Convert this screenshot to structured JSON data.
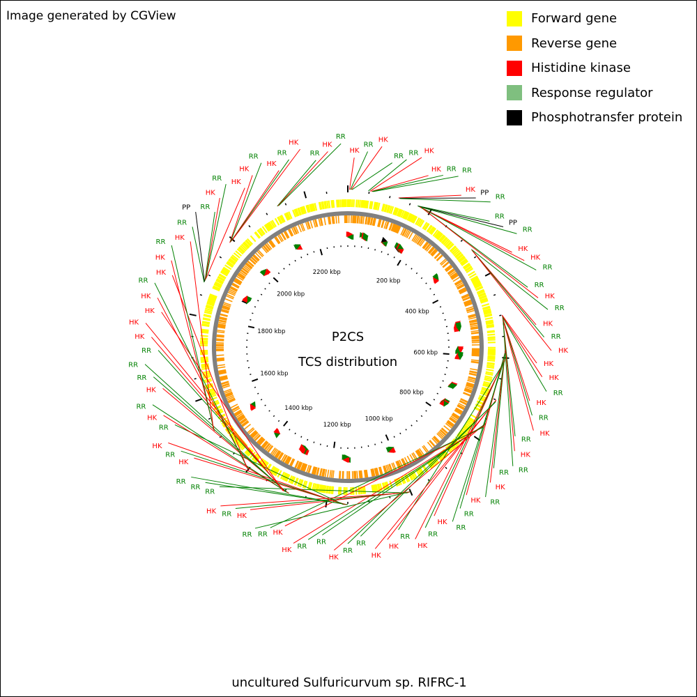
{
  "credit": "Image generated by CGView",
  "legend": [
    {
      "label": "Forward gene",
      "color": "#ffff00"
    },
    {
      "label": "Reverse gene",
      "color": "#ff9900"
    },
    {
      "label": "Histidine kinase",
      "color": "#ff0000"
    },
    {
      "label": "Response regulator",
      "color": "#7fbf7f"
    },
    {
      "label": "Phosphotransfer protein",
      "color": "#000000"
    }
  ],
  "center": {
    "line1": "P2CS",
    "line2": "TCS distribution"
  },
  "organism": "uncultured Sulfuricurvum sp. RIFRC-1",
  "genome": {
    "length_kbp": 2300,
    "tick_labels": [
      "200 kbp",
      "400 kbp",
      "600 kbp",
      "800 kbp",
      "1000 kbp",
      "1200 kbp",
      "1400 kbp",
      "1600 kbp",
      "1800 kbp",
      "2000 kbp",
      "2200 kbp"
    ]
  },
  "colors": {
    "forward": "#ffff00",
    "reverse": "#ff9900",
    "hk": "#ff0000",
    "rr": "#008000",
    "pp": "#000000",
    "backbone": "#808080"
  },
  "features": [
    {
      "label": "HK",
      "type": "hk",
      "pos_kbp": 4
    },
    {
      "label": "RR",
      "type": "rr",
      "pos_kbp": 6
    },
    {
      "label": "HK",
      "type": "hk",
      "pos_kbp": 8
    },
    {
      "label": "RR",
      "type": "rr",
      "pos_kbp": 10
    },
    {
      "label": "RR",
      "type": "rr",
      "pos_kbp": 48
    },
    {
      "label": "HK",
      "type": "hk",
      "pos_kbp": 52
    },
    {
      "label": "HK",
      "type": "hk",
      "pos_kbp": 55
    },
    {
      "label": "RR",
      "type": "rr",
      "pos_kbp": 57
    },
    {
      "label": "RR",
      "type": "rr",
      "pos_kbp": 59
    },
    {
      "label": "HK",
      "type": "hk",
      "pos_kbp": 120
    },
    {
      "label": "PP",
      "type": "pp",
      "pos_kbp": 122
    },
    {
      "label": "RR",
      "type": "rr",
      "pos_kbp": 124
    },
    {
      "label": "RR",
      "type": "rr",
      "pos_kbp": 168
    },
    {
      "label": "PP",
      "type": "pp",
      "pos_kbp": 170
    },
    {
      "label": "RR",
      "type": "rr",
      "pos_kbp": 172
    },
    {
      "label": "HK",
      "type": "hk",
      "pos_kbp": 174
    },
    {
      "label": "HK",
      "type": "hk",
      "pos_kbp": 176
    },
    {
      "label": "RR",
      "type": "rr",
      "pos_kbp": 178
    },
    {
      "label": "RR",
      "type": "rr",
      "pos_kbp": 180
    },
    {
      "label": "HK",
      "type": "hk",
      "pos_kbp": 182
    },
    {
      "label": "RR",
      "type": "rr",
      "pos_kbp": 330
    },
    {
      "label": "HK",
      "type": "hk",
      "pos_kbp": 332
    },
    {
      "label": "RR",
      "type": "rr",
      "pos_kbp": 334
    },
    {
      "label": "HK",
      "type": "hk",
      "pos_kbp": 336
    },
    {
      "label": "HK",
      "type": "hk",
      "pos_kbp": 500
    },
    {
      "label": "HK",
      "type": "hk",
      "pos_kbp": 502
    },
    {
      "label": "RR",
      "type": "rr",
      "pos_kbp": 504
    },
    {
      "label": "HK",
      "type": "hk",
      "pos_kbp": 506
    },
    {
      "label": "RR",
      "type": "rr",
      "pos_kbp": 508
    },
    {
      "label": "HK",
      "type": "hk",
      "pos_kbp": 510
    },
    {
      "label": "RR",
      "type": "rr",
      "pos_kbp": 512
    },
    {
      "label": "HK",
      "type": "hk",
      "pos_kbp": 514
    },
    {
      "label": "RR",
      "type": "rr",
      "pos_kbp": 516
    },
    {
      "label": "RR",
      "type": "rr",
      "pos_kbp": 580
    },
    {
      "label": "HK",
      "type": "hk",
      "pos_kbp": 582
    },
    {
      "label": "RR",
      "type": "rr",
      "pos_kbp": 584
    },
    {
      "label": "HK",
      "type": "hk",
      "pos_kbp": 586
    },
    {
      "label": "RR",
      "type": "rr",
      "pos_kbp": 588
    },
    {
      "label": "RR",
      "type": "rr",
      "pos_kbp": 600
    },
    {
      "label": "HK",
      "type": "hk",
      "pos_kbp": 602
    },
    {
      "label": "RR",
      "type": "rr",
      "pos_kbp": 604
    },
    {
      "label": "HK",
      "type": "hk",
      "pos_kbp": 606
    },
    {
      "label": "RR",
      "type": "rr",
      "pos_kbp": 608
    },
    {
      "label": "HK",
      "type": "hk",
      "pos_kbp": 700
    },
    {
      "label": "HK",
      "type": "hk",
      "pos_kbp": 702
    },
    {
      "label": "RR",
      "type": "rr",
      "pos_kbp": 704
    },
    {
      "label": "RR",
      "type": "rr",
      "pos_kbp": 706
    },
    {
      "label": "HK",
      "type": "hk",
      "pos_kbp": 760
    },
    {
      "label": "RR",
      "type": "rr",
      "pos_kbp": 762
    },
    {
      "label": "RR",
      "type": "rr",
      "pos_kbp": 764
    },
    {
      "label": "HK",
      "type": "hk",
      "pos_kbp": 766
    },
    {
      "label": "HK",
      "type": "hk",
      "pos_kbp": 768
    },
    {
      "label": "RR",
      "type": "rr",
      "pos_kbp": 770
    },
    {
      "label": "RR",
      "type": "rr",
      "pos_kbp": 1000
    },
    {
      "label": "HK",
      "type": "hk",
      "pos_kbp": 1002
    },
    {
      "label": "RR",
      "type": "rr",
      "pos_kbp": 1004
    },
    {
      "label": "HK",
      "type": "hk",
      "pos_kbp": 1006
    },
    {
      "label": "RR",
      "type": "rr",
      "pos_kbp": 1008
    },
    {
      "label": "RR",
      "type": "rr",
      "pos_kbp": 1150
    },
    {
      "label": "RR",
      "type": "rr",
      "pos_kbp": 1152
    },
    {
      "label": "HK",
      "type": "hk",
      "pos_kbp": 1154
    },
    {
      "label": "RR",
      "type": "rr",
      "pos_kbp": 1156
    },
    {
      "label": "HK",
      "type": "hk",
      "pos_kbp": 1158
    },
    {
      "label": "RR",
      "type": "rr",
      "pos_kbp": 1160
    },
    {
      "label": "HK",
      "type": "hk",
      "pos_kbp": 1290
    },
    {
      "label": "RR",
      "type": "rr",
      "pos_kbp": 1292
    },
    {
      "label": "HK",
      "type": "hk",
      "pos_kbp": 1294
    },
    {
      "label": "RR",
      "type": "rr",
      "pos_kbp": 1296
    },
    {
      "label": "RR",
      "type": "rr",
      "pos_kbp": 1298
    },
    {
      "label": "RR",
      "type": "rr",
      "pos_kbp": 1300
    },
    {
      "label": "HK",
      "type": "hk",
      "pos_kbp": 1302
    },
    {
      "label": "HK",
      "type": "hk",
      "pos_kbp": 1304
    },
    {
      "label": "HK",
      "type": "hk",
      "pos_kbp": 1306
    },
    {
      "label": "HK",
      "type": "hk",
      "pos_kbp": 1400
    },
    {
      "label": "RR",
      "type": "rr",
      "pos_kbp": 1402
    },
    {
      "label": "HK",
      "type": "hk",
      "pos_kbp": 1404
    },
    {
      "label": "HK",
      "type": "hk",
      "pos_kbp": 1520
    },
    {
      "label": "RR",
      "type": "rr",
      "pos_kbp": 1522
    },
    {
      "label": "HK",
      "type": "hk",
      "pos_kbp": 1524
    },
    {
      "label": "RR",
      "type": "rr",
      "pos_kbp": 1880
    },
    {
      "label": "PP",
      "type": "pp",
      "pos_kbp": 1882
    },
    {
      "label": "RR",
      "type": "rr",
      "pos_kbp": 1884
    },
    {
      "label": "HK",
      "type": "hk",
      "pos_kbp": 1886
    },
    {
      "label": "RR",
      "type": "rr",
      "pos_kbp": 1888
    },
    {
      "label": "HK",
      "type": "hk",
      "pos_kbp": 1890
    },
    {
      "label": "HK",
      "type": "hk",
      "pos_kbp": 1990
    },
    {
      "label": "RR",
      "type": "rr",
      "pos_kbp": 1992
    },
    {
      "label": "HK",
      "type": "hk",
      "pos_kbp": 1994
    },
    {
      "label": "RR",
      "type": "rr",
      "pos_kbp": 1996
    },
    {
      "label": "HK",
      "type": "hk",
      "pos_kbp": 1998
    },
    {
      "label": "RR",
      "type": "rr",
      "pos_kbp": 2130
    },
    {
      "label": "HK",
      "type": "hk",
      "pos_kbp": 2132
    },
    {
      "label": "RR",
      "type": "rr",
      "pos_kbp": 2134
    }
  ]
}
